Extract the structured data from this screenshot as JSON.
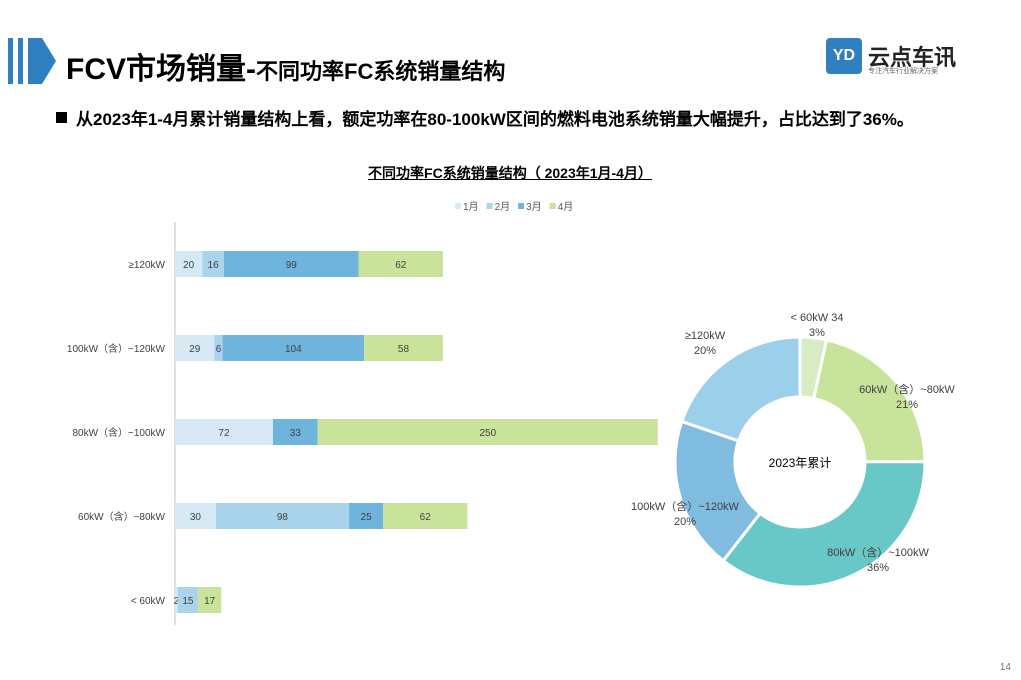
{
  "header": {
    "title_main": "FCV市场销量-",
    "title_sub": "不同功率FC系统销量结构"
  },
  "logo": {
    "mark": "YD",
    "name": "云点车讯",
    "tagline": "专注汽车行业解决方案"
  },
  "bullet": {
    "text": "从2023年1-4月累计销量结构上看，额定功率在80-100kW区间的燃料电池系统销量大幅提升，占比达到了36%。"
  },
  "chart_data": [
    {
      "type": "bar",
      "orientation": "horizontal",
      "stacked": true,
      "title": "不同功率FC系统销量结构（ 2023年1月-4月）",
      "categories": [
        "≥120kW",
        "100kW（含）~120kW",
        "80kW（含）~100kW",
        "60kW（含）~80kW",
        "< 60kW"
      ],
      "series": [
        {
          "name": "1月",
          "values": [
            20,
            29,
            72,
            30,
            2
          ],
          "color": "#d6eaf5"
        },
        {
          "name": "2月",
          "values": [
            16,
            6,
            0,
            98,
            15
          ],
          "color": "#a9d4ec"
        },
        {
          "name": "3月",
          "values": [
            99,
            104,
            33,
            25,
            0
          ],
          "color": "#6fb4dc"
        },
        {
          "name": "4月",
          "values": [
            62,
            58,
            250,
            62,
            17
          ],
          "color": "#c9e39a"
        }
      ],
      "legend_position": "top",
      "grid": false
    },
    {
      "type": "pie",
      "donut": true,
      "center_label": "2023年累计",
      "slices": [
        {
          "name": "< 60kW",
          "value": 34,
          "percent_label": "3%",
          "color": "#d7ecc3"
        },
        {
          "name": "60kW（含）~80kW",
          "value": 215,
          "percent_label": "21%",
          "color": "#c7e49a"
        },
        {
          "name": "80kW（含）~100kW",
          "value": 355,
          "percent_label": "36%",
          "color": "#67c8c7"
        },
        {
          "name": "100kW（含）~120kW",
          "value": 197,
          "percent_label": "20%",
          "color": "#7fbcdf"
        },
        {
          "name": "≥120kW",
          "value": 197,
          "percent_label": "20%",
          "color": "#9ccfea"
        }
      ]
    }
  ],
  "page": {
    "number": "14"
  }
}
